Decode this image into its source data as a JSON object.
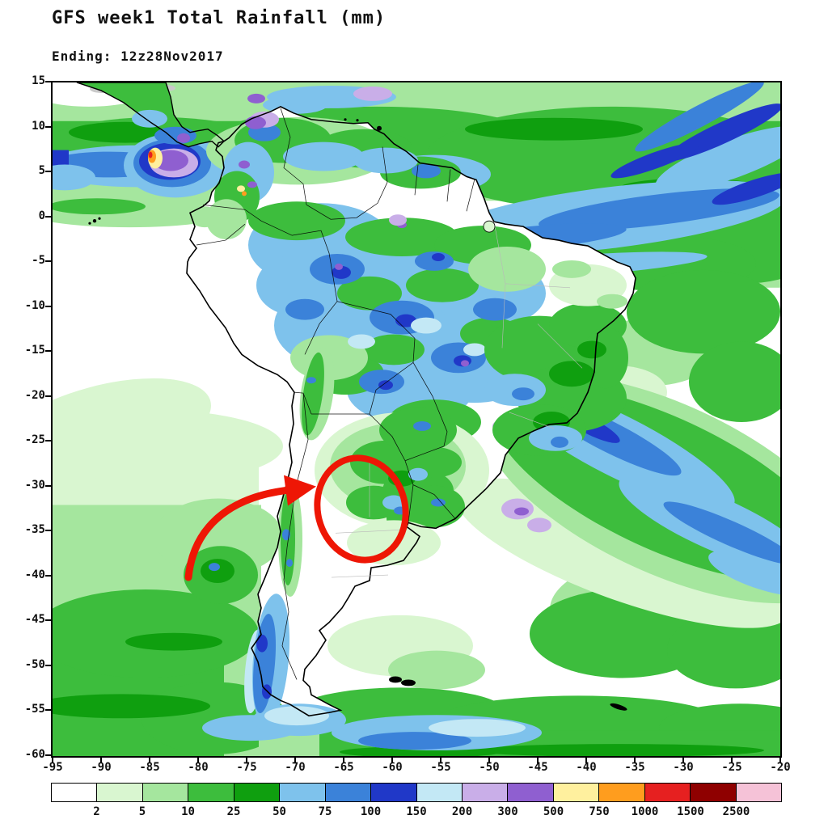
{
  "header": {
    "title": "GFS week1 Total Rainfall (mm)",
    "subtitle": "Ending: 12z28Nov2017"
  },
  "map": {
    "region": "South America",
    "lat_ticks": [
      "15",
      "10",
      "5",
      "0",
      "-5",
      "-10",
      "-15",
      "-20",
      "-25",
      "-30",
      "-35",
      "-40",
      "-45",
      "-50",
      "-55",
      "-60"
    ],
    "lon_ticks": [
      "-95",
      "-90",
      "-85",
      "-80",
      "-75",
      "-70",
      "-65",
      "-60",
      "-55",
      "-50",
      "-45",
      "-40",
      "-35",
      "-30",
      "-25",
      "-20"
    ],
    "annotation": {
      "shape": "ellipse-with-curved-arrow",
      "color": "#ee1605",
      "target_area": "northeastern Argentina / Uruguay region"
    }
  },
  "colorbar": {
    "boundary_labels": [
      "2",
      "5",
      "10",
      "25",
      "50",
      "75",
      "100",
      "150",
      "200",
      "300",
      "500",
      "750",
      "1000",
      "1500",
      "2500"
    ],
    "segment_colors": [
      "#ffffff",
      "#d9f6d0",
      "#a5e69e",
      "#3dbd3d",
      "#0f9f0f",
      "#7ec2ec",
      "#3b82d9",
      "#2038c8",
      "#c3e8f5",
      "#c9aee8",
      "#8f5fd0",
      "#fff09e",
      "#ff9d1e",
      "#e62020",
      "#8f0000",
      "#f5c2d7"
    ]
  }
}
